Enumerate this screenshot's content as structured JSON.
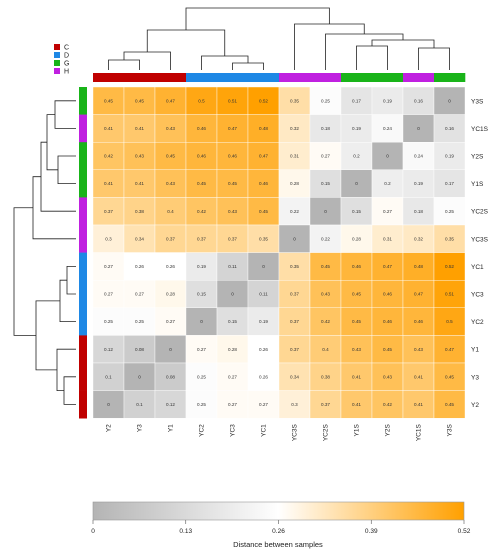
{
  "chart_data": {
    "type": "heatmap",
    "legend": {
      "groups": [
        {
          "label": "C",
          "color": "#c00000"
        },
        {
          "label": "D",
          "color": "#1e88e5"
        },
        {
          "label": "G",
          "color": "#19b419"
        },
        {
          "label": "H",
          "color": "#c020e0"
        }
      ]
    },
    "columns": [
      "Y2",
      "Y3",
      "Y1",
      "YC2",
      "YC3",
      "YC1",
      "YC3S",
      "YC2S",
      "Y1S",
      "Y2S",
      "YC1S",
      "Y3S"
    ],
    "column_groups": [
      "C",
      "C",
      "C",
      "D",
      "D",
      "D",
      "H",
      "H",
      "G",
      "G",
      "H",
      "G"
    ],
    "rows": [
      "Y3S",
      "YC1S",
      "Y2S",
      "Y1S",
      "YC2S",
      "YC3S",
      "YC1",
      "YC3",
      "YC2",
      "Y1",
      "Y3",
      "Y2"
    ],
    "row_groups": [
      "G",
      "H",
      "G",
      "G",
      "H",
      "H",
      "D",
      "D",
      "D",
      "C",
      "C",
      "C"
    ],
    "values": [
      [
        0.45,
        0.45,
        0.47,
        0.5,
        0.51,
        0.52,
        0.35,
        0.25,
        0.17,
        0.19,
        0.16,
        0
      ],
      [
        0.41,
        0.41,
        0.43,
        0.46,
        0.47,
        0.48,
        0.32,
        0.18,
        0.19,
        0.24,
        0,
        0.16
      ],
      [
        0.42,
        0.43,
        0.45,
        0.46,
        0.46,
        0.47,
        0.31,
        0.27,
        0.2,
        0,
        0.24,
        0.19
      ],
      [
        0.41,
        0.41,
        0.43,
        0.45,
        0.45,
        0.46,
        0.28,
        0.15,
        0,
        0.2,
        0.19,
        0.17
      ],
      [
        0.37,
        0.38,
        0.4,
        0.42,
        0.43,
        0.45,
        0.22,
        0,
        0.15,
        0.27,
        0.18,
        0.25
      ],
      [
        0.3,
        0.34,
        0.37,
        0.37,
        0.37,
        0.35,
        0,
        0.22,
        0.28,
        0.31,
        0.32,
        0.35
      ],
      [
        0.27,
        0.26,
        0.26,
        0.19,
        0.11,
        0,
        0.35,
        0.45,
        0.46,
        0.47,
        0.48,
        0.52
      ],
      [
        0.27,
        0.27,
        0.28,
        0.15,
        0,
        0.11,
        0.37,
        0.43,
        0.45,
        0.46,
        0.47,
        0.51
      ],
      [
        0.25,
        0.25,
        0.27,
        0,
        0.15,
        0.19,
        0.37,
        0.42,
        0.45,
        0.46,
        0.46,
        0.5
      ],
      [
        0.12,
        0.08,
        0,
        0.27,
        0.28,
        0.26,
        0.37,
        0.4,
        0.43,
        0.45,
        0.43,
        0.47
      ],
      [
        0.1,
        0,
        0.08,
        0.25,
        0.27,
        0.26,
        0.34,
        0.38,
        0.41,
        0.43,
        0.41,
        0.45
      ],
      [
        0,
        0.1,
        0.12,
        0.25,
        0.27,
        0.27,
        0.3,
        0.37,
        0.41,
        0.42,
        0.41,
        0.45
      ]
    ],
    "colorbar": {
      "ticks": [
        "0",
        "0.13",
        "0.26",
        "0.39",
        "0.52"
      ],
      "min": 0,
      "mid": 0.26,
      "max": 0.52,
      "low_color": "#b4b4b4",
      "mid_color": "#ffffff",
      "high_color": "#ffa000",
      "label": "Distance between samples"
    }
  }
}
